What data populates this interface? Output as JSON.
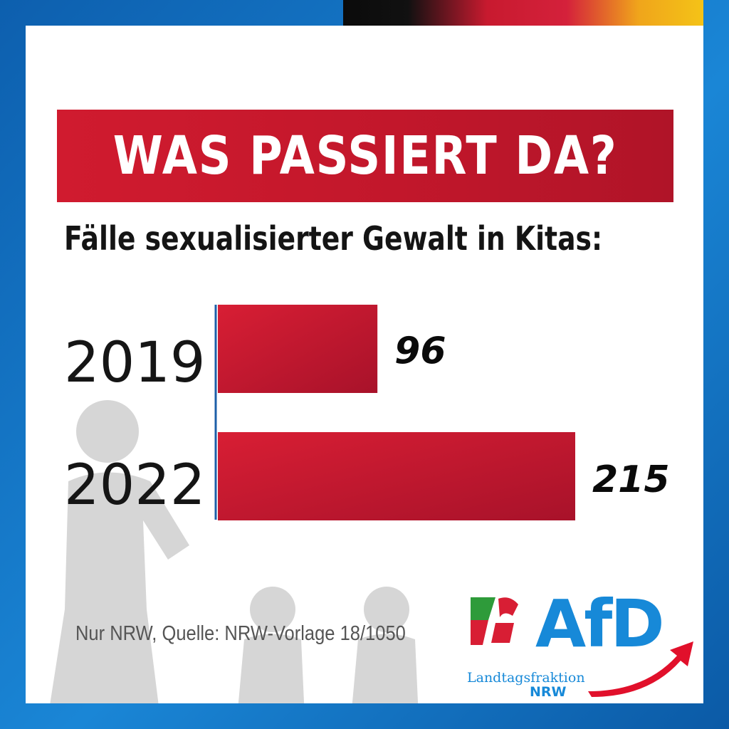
{
  "headline": "WAS PASSIERT DA?",
  "subtitle": "Fälle sexualisierter Gewalt in Kitas:",
  "source": "Nur NRW, Quelle: NRW-Vorlage 18/1050",
  "logo": {
    "name": "AfD",
    "line1": "Landtagsfraktion",
    "line2": "NRW"
  },
  "colors": {
    "bar": "#c4182c",
    "brand_blue": "#1789d8",
    "headline_bg": "#c2172b"
  },
  "chart_data": {
    "type": "bar",
    "orientation": "horizontal",
    "title": "Fälle sexualisierter Gewalt in Kitas:",
    "categories": [
      "2019",
      "2022"
    ],
    "values": [
      96,
      215
    ],
    "value_labels": [
      "96",
      "215"
    ],
    "xlabel": "",
    "ylabel": "",
    "xlim": [
      0,
      215
    ],
    "grid": false,
    "legend": "none"
  }
}
